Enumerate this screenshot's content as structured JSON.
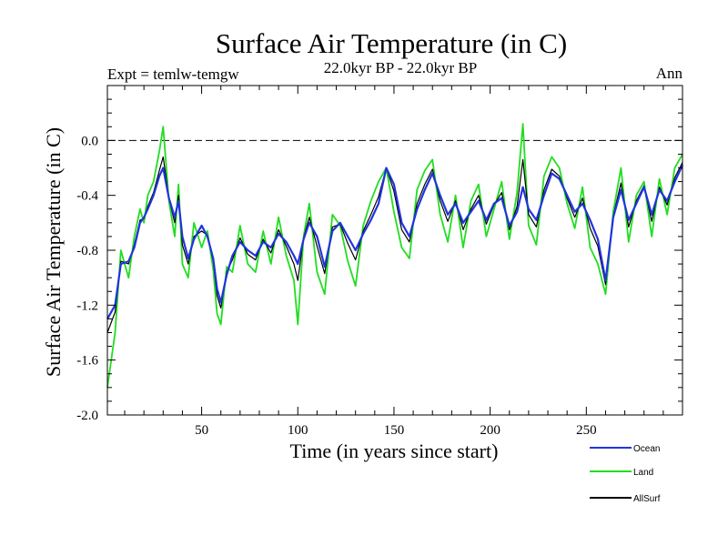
{
  "chart_data": {
    "type": "line",
    "title": "Surface Air Temperature (in C)",
    "subtitle": "22.0kyr BP - 22.0kyr BP",
    "left_label": "Expt = temlw-temgw",
    "right_label": "Ann",
    "xlabel": "Time (in years since start)",
    "ylabel": "Surface Air Temperature (in C)",
    "xlim": [
      1,
      300
    ],
    "ylim": [
      -2.0,
      0.4
    ],
    "x_ticks": [
      50,
      100,
      150,
      200,
      250
    ],
    "x_tick_labels": [
      "50",
      "100",
      "150",
      "200",
      "250"
    ],
    "y_ticks": [
      -2.0,
      -1.6,
      -1.2,
      -0.8,
      -0.4,
      0.0
    ],
    "y_tick_labels": [
      "-2.0",
      "-1.6",
      "-1.2",
      "-0.8",
      "-0.4",
      "0.0"
    ],
    "reference_line": 0.0,
    "series": [
      {
        "name": "Ocean",
        "color": "#2233dd",
        "x": [
          1,
          5,
          8,
          12,
          15,
          18,
          20,
          22,
          25,
          28,
          30,
          33,
          36,
          38,
          40,
          43,
          46,
          50,
          53,
          56,
          58,
          60,
          63,
          66,
          70,
          74,
          78,
          82,
          86,
          90,
          94,
          98,
          100,
          103,
          106,
          110,
          114,
          118,
          122,
          126,
          130,
          134,
          138,
          142,
          146,
          150,
          154,
          158,
          162,
          166,
          170,
          174,
          178,
          182,
          186,
          190,
          194,
          198,
          202,
          206,
          210,
          214,
          217,
          220,
          224,
          228,
          232,
          236,
          240,
          244,
          248,
          252,
          256,
          260,
          264,
          268,
          272,
          276,
          280,
          284,
          288,
          292,
          296,
          300
        ],
        "values": [
          -1.3,
          -1.2,
          -0.9,
          -0.88,
          -0.78,
          -0.6,
          -0.56,
          -0.5,
          -0.4,
          -0.26,
          -0.2,
          -0.42,
          -0.56,
          -0.44,
          -0.7,
          -0.86,
          -0.72,
          -0.62,
          -0.7,
          -0.86,
          -1.08,
          -1.18,
          -0.98,
          -0.84,
          -0.74,
          -0.8,
          -0.84,
          -0.74,
          -0.78,
          -0.68,
          -0.74,
          -0.84,
          -0.9,
          -0.72,
          -0.6,
          -0.7,
          -0.92,
          -0.66,
          -0.6,
          -0.7,
          -0.8,
          -0.68,
          -0.58,
          -0.46,
          -0.2,
          -0.32,
          -0.6,
          -0.7,
          -0.5,
          -0.36,
          -0.24,
          -0.4,
          -0.54,
          -0.46,
          -0.6,
          -0.52,
          -0.44,
          -0.58,
          -0.46,
          -0.42,
          -0.62,
          -0.52,
          -0.34,
          -0.5,
          -0.58,
          -0.4,
          -0.24,
          -0.28,
          -0.4,
          -0.52,
          -0.46,
          -0.58,
          -0.72,
          -1.02,
          -0.56,
          -0.36,
          -0.58,
          -0.46,
          -0.34,
          -0.54,
          -0.36,
          -0.44,
          -0.3,
          -0.18
        ]
      },
      {
        "name": "Land",
        "color": "#22dd22",
        "x": [
          1,
          5,
          8,
          12,
          15,
          18,
          20,
          22,
          25,
          28,
          30,
          33,
          36,
          38,
          40,
          43,
          46,
          50,
          53,
          56,
          58,
          60,
          63,
          66,
          70,
          74,
          78,
          82,
          86,
          90,
          94,
          98,
          100,
          103,
          106,
          110,
          114,
          118,
          122,
          126,
          130,
          134,
          138,
          142,
          146,
          150,
          154,
          158,
          162,
          166,
          170,
          174,
          178,
          182,
          186,
          190,
          194,
          198,
          202,
          206,
          210,
          214,
          217,
          220,
          224,
          228,
          232,
          236,
          240,
          244,
          248,
          252,
          256,
          260,
          264,
          268,
          272,
          276,
          280,
          284,
          288,
          292,
          296,
          300
        ],
        "values": [
          -1.8,
          -1.4,
          -0.8,
          -1.0,
          -0.7,
          -0.5,
          -0.6,
          -0.4,
          -0.3,
          -0.08,
          0.1,
          -0.44,
          -0.7,
          -0.32,
          -0.9,
          -1.0,
          -0.6,
          -0.78,
          -0.66,
          -0.94,
          -1.26,
          -1.34,
          -0.92,
          -0.96,
          -0.62,
          -0.9,
          -0.96,
          -0.66,
          -0.9,
          -0.56,
          -0.84,
          -1.02,
          -1.34,
          -0.7,
          -0.46,
          -0.96,
          -1.12,
          -0.54,
          -0.62,
          -0.88,
          -1.06,
          -0.62,
          -0.44,
          -0.3,
          -0.2,
          -0.52,
          -0.78,
          -0.86,
          -0.36,
          -0.22,
          -0.14,
          -0.54,
          -0.74,
          -0.4,
          -0.78,
          -0.44,
          -0.32,
          -0.7,
          -0.5,
          -0.3,
          -0.72,
          -0.38,
          0.12,
          -0.62,
          -0.76,
          -0.26,
          -0.12,
          -0.2,
          -0.46,
          -0.64,
          -0.34,
          -0.78,
          -0.9,
          -1.12,
          -0.52,
          -0.2,
          -0.74,
          -0.4,
          -0.3,
          -0.7,
          -0.28,
          -0.54,
          -0.2,
          -0.1
        ]
      },
      {
        "name": "AllSurf",
        "color": "#000000",
        "x": [
          1,
          5,
          8,
          12,
          15,
          18,
          20,
          22,
          25,
          28,
          30,
          33,
          36,
          38,
          40,
          43,
          46,
          50,
          53,
          56,
          58,
          60,
          63,
          66,
          70,
          74,
          78,
          82,
          86,
          90,
          94,
          98,
          100,
          103,
          106,
          110,
          114,
          118,
          122,
          126,
          130,
          134,
          138,
          142,
          146,
          150,
          154,
          158,
          162,
          166,
          170,
          174,
          178,
          182,
          186,
          190,
          194,
          198,
          202,
          206,
          210,
          214,
          217,
          220,
          224,
          228,
          232,
          236,
          240,
          244,
          248,
          252,
          256,
          260,
          264,
          268,
          272,
          276,
          280,
          284,
          288,
          292,
          296,
          300
        ],
        "values": [
          -1.4,
          -1.25,
          -0.88,
          -0.9,
          -0.76,
          -0.58,
          -0.57,
          -0.48,
          -0.38,
          -0.22,
          -0.12,
          -0.42,
          -0.6,
          -0.4,
          -0.76,
          -0.9,
          -0.7,
          -0.66,
          -0.69,
          -0.88,
          -1.13,
          -1.22,
          -0.96,
          -0.87,
          -0.71,
          -0.83,
          -0.87,
          -0.72,
          -0.82,
          -0.65,
          -0.77,
          -0.9,
          -1.02,
          -0.71,
          -0.56,
          -0.77,
          -0.97,
          -0.63,
          -0.61,
          -0.75,
          -0.87,
          -0.66,
          -0.54,
          -0.41,
          -0.2,
          -0.37,
          -0.65,
          -0.74,
          -0.46,
          -0.32,
          -0.21,
          -0.44,
          -0.59,
          -0.44,
          -0.65,
          -0.5,
          -0.4,
          -0.61,
          -0.47,
          -0.38,
          -0.65,
          -0.48,
          -0.14,
          -0.54,
          -0.63,
          -0.36,
          -0.21,
          -0.26,
          -0.42,
          -0.56,
          -0.42,
          -0.64,
          -0.77,
          -1.05,
          -0.55,
          -0.31,
          -0.63,
          -0.44,
          -0.33,
          -0.59,
          -0.34,
          -0.47,
          -0.27,
          -0.16
        ]
      }
    ],
    "legend": {
      "placement": "bottom-right",
      "entries": [
        {
          "label": "Ocean",
          "color": "#2233dd"
        },
        {
          "label": "Land",
          "color": "#22dd22"
        },
        {
          "label": "AllSurf",
          "color": "#000000"
        }
      ]
    }
  }
}
